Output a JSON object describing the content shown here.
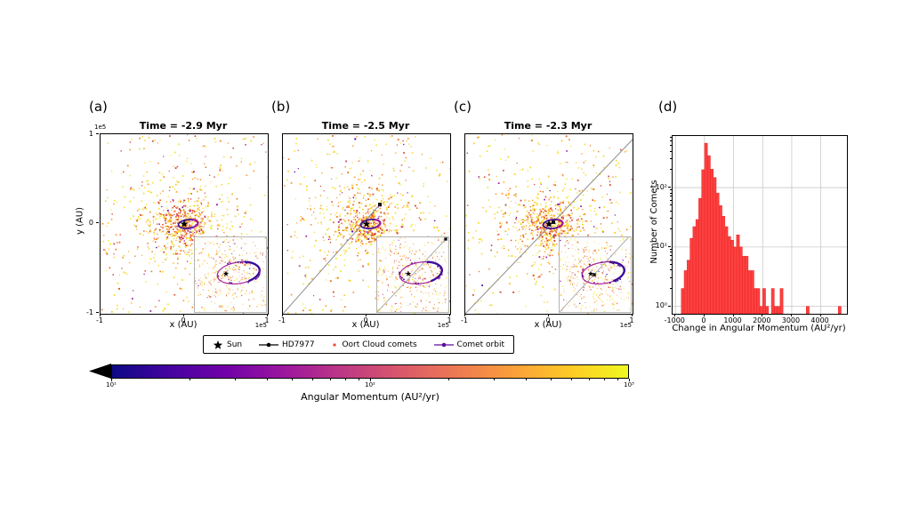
{
  "figure": {
    "background": "#ffffff",
    "panels": {
      "a": {
        "label": "(a)",
        "title": "Time = -2.9 Myr",
        "xlabel": "x (AU)",
        "ylabel": "y (AU)",
        "x_offset_label": "1e5",
        "y_offset_label": "1e5",
        "xtick_labels": [
          "-1",
          "0",
          "1"
        ],
        "ytick_labels": [
          "1",
          "0",
          "-1"
        ]
      },
      "b": {
        "label": "(b)",
        "title": "Time = -2.5 Myr",
        "xlabel": "x (AU)",
        "x_offset_label": "1e5",
        "xtick_labels": [
          "-1",
          "0",
          "1"
        ]
      },
      "c": {
        "label": "(c)",
        "title": "Time = -2.3 Myr",
        "xlabel": "x (AU)",
        "x_offset_label": "1e5",
        "xtick_labels": [
          "-1",
          "0",
          "1"
        ]
      },
      "d": {
        "label": "(d)",
        "xlabel": "Change in Angular Momentum (AU²/yr)",
        "ylabel": "Number of Comets",
        "xtick_labels": [
          "-1000",
          "0",
          "1000",
          "2000",
          "3000",
          "4000"
        ],
        "xtick_values": [
          -1000,
          0,
          1000,
          2000,
          3000,
          4000
        ],
        "ytick_labels": [
          "10⁰",
          "10¹",
          "10²"
        ],
        "ytick_values": [
          1,
          10,
          100
        ]
      }
    },
    "legend": {
      "items": [
        {
          "label": "Sun",
          "marker": "star",
          "color": "#000000"
        },
        {
          "label": "HD7977",
          "marker": "line-dot",
          "color": "#000000"
        },
        {
          "label": "Oort Cloud comets",
          "marker": "dot",
          "color": "#e8483b"
        },
        {
          "label": "Comet orbit",
          "marker": "line-dot",
          "color": "#5c0f9e"
        }
      ]
    },
    "colorbar": {
      "label": "Angular Momentum (AU²/yr)",
      "tick_labels": [
        "10¹",
        "10²",
        "10³"
      ],
      "tick_values": [
        10,
        100,
        1000
      ],
      "gradient": [
        "#0d0887",
        "#46039f",
        "#7201a8",
        "#9c179e",
        "#bd3786",
        "#d8576b",
        "#ed7953",
        "#fb9f3a",
        "#fdca26",
        "#f0f921"
      ],
      "extend_min_color": "#000000"
    }
  },
  "chart_data": [
    {
      "type": "scatter",
      "panel": "a",
      "title": "Time = -2.9 Myr",
      "xlabel": "x (AU)",
      "ylabel": "y (AU)",
      "axis_scale": "1e5 AU",
      "xlim": [
        -100000,
        100000
      ],
      "ylim": [
        -100000,
        100000
      ],
      "sun_position": [
        0,
        0
      ],
      "hd7977_position": null,
      "flyby_trajectory": null,
      "comet_orbit": {
        "shape": "small purple ellipse around Sun",
        "color": "#3a0c97"
      },
      "comet_cloud": {
        "n_points": 940,
        "distribution": "dense gaussian core at origin plus uniform halo",
        "color_encoding": "angular momentum 10-1000 AU²/yr on plasma colormap (yellow=high, purple=low)"
      },
      "inset": "zoomed view of central region showing comet orbit ellipse and Sun"
    },
    {
      "type": "scatter",
      "panel": "b",
      "title": "Time = -2.5 Myr",
      "xlabel": "x (AU)",
      "axis_scale": "1e5 AU",
      "xlim": [
        -100000,
        100000
      ],
      "ylim": [
        -100000,
        100000
      ],
      "sun_position": [
        0,
        0
      ],
      "hd7977_position": [
        16000,
        22000
      ],
      "flyby_trajectory": "gray line from lower-left corner ending at HD7977 marker",
      "comet_orbit": {
        "shape": "small purple ellipse around Sun",
        "color": "#3a0c97"
      },
      "comet_cloud": {
        "n_points": 940,
        "distribution": "dense gaussian core at origin plus uniform halo",
        "color_encoding": "angular momentum 10-1000 AU²/yr on plasma colormap"
      },
      "inset": "zoomed view with comet orbit, flyby line and HD7977 at upper-right"
    },
    {
      "type": "scatter",
      "panel": "c",
      "title": "Time = -2.3 Myr",
      "xlabel": "x (AU)",
      "axis_scale": "1e5 AU",
      "xlim": [
        -100000,
        100000
      ],
      "ylim": [
        -100000,
        100000
      ],
      "sun_position": [
        0,
        0
      ],
      "hd7977_position": [
        5000,
        2000
      ],
      "flyby_trajectory": "gray line crossing full panel corner to corner through the Sun",
      "comet_orbit": {
        "shape": "small purple ellipse around Sun",
        "color": "#3a0c97"
      },
      "comet_cloud": {
        "n_points": 940,
        "distribution": "dense gaussian core at origin plus uniform halo",
        "color_encoding": "angular momentum 10-1000 AU²/yr on plasma colormap"
      },
      "inset": "zoomed view with comet orbit, flyby line and HD7977 beside the Sun"
    },
    {
      "type": "histogram",
      "panel": "d",
      "xlabel": "Change in Angular Momentum (AU²/yr)",
      "ylabel": "Number of Comets",
      "yscale": "log",
      "grid": true,
      "bar_color": "#fb4040",
      "bar_edge_color": "#ef2323",
      "bin_start": -800,
      "bin_width": 100,
      "xlim": [
        -1100,
        4900
      ],
      "ylim": [
        0.75,
        740
      ],
      "counts": [
        2,
        4,
        6,
        14,
        22,
        29,
        66,
        200,
        560,
        345,
        204,
        148,
        81,
        50,
        33,
        22,
        15,
        13,
        10,
        16,
        10,
        7,
        7,
        4,
        4,
        2,
        2,
        1,
        2,
        1,
        0,
        2,
        1,
        1,
        2,
        0,
        0,
        0,
        0,
        0,
        0,
        0,
        0,
        1,
        0,
        0,
        0,
        0,
        0,
        0,
        0,
        0,
        0,
        0,
        1
      ]
    },
    {
      "type": "colorbar",
      "label": "Angular Momentum (AU²/yr)",
      "scale": "log",
      "range": [
        10,
        1000
      ],
      "colormap": "plasma",
      "extend": "min"
    }
  ]
}
